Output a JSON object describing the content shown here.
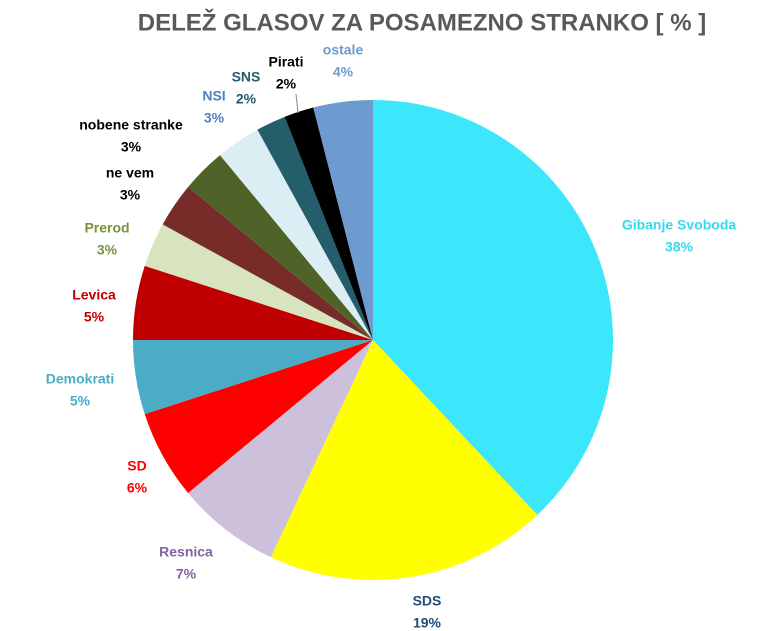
{
  "chart_data": {
    "type": "pie",
    "title": "DELEŽ GLASOV ZA POSAMEZNO STRANKO [ % ]",
    "categories": [
      "Gibanje Svoboda",
      "SDS",
      "Resnica",
      "SD",
      "Demokrati",
      "Levica",
      "Prerod",
      "ne vem",
      "nobene stranke",
      "NSI",
      "SNS",
      "Pirati",
      "ostale"
    ],
    "values": [
      38,
      19,
      7,
      6,
      5,
      5,
      3,
      3,
      3,
      3,
      2,
      2,
      4
    ],
    "value_labels": [
      "38%",
      "19%",
      "7%",
      "6%",
      "5%",
      "5%",
      "3%",
      "3%",
      "3%",
      "3%",
      "2%",
      "2%",
      "4%"
    ],
    "colors": [
      "#3ce6fb",
      "#ffff00",
      "#ccc0da",
      "#ff0000",
      "#4bacc6",
      "#c00000",
      "#d7e4bd",
      "#772c2a",
      "#4f6228",
      "#dbeef4",
      "#245e6b",
      "#000000",
      "#6e9bcf"
    ],
    "label_colors": [
      "#3ad8ee",
      "#1f4e79",
      "#8064a2",
      "#ff0000",
      "#4bacc6",
      "#c00000",
      "#77933c",
      "#000000",
      "#000000",
      "#4f81bd",
      "#245e6b",
      "#000000",
      "#6e9bcf"
    ]
  }
}
